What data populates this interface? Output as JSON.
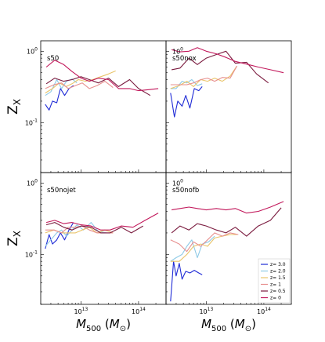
{
  "chart_data": {
    "type": "line",
    "xscale": "log",
    "yscale": "log",
    "xlim": [
      2000000000000.0,
      300000000000000.0
    ],
    "ylim": [
      0.02,
      1.4
    ],
    "xticks": [
      {
        "value": 10000000000000.0,
        "label": "10^13"
      },
      {
        "value": 100000000000000.0,
        "label": "10^14"
      }
    ],
    "yticks": [
      {
        "value": 1,
        "label": "10^0"
      },
      {
        "value": 0.1,
        "label": "10^-1"
      }
    ],
    "ylabel": "Z_X",
    "xlabel": "M_500 (M_⊙)",
    "series_styles": [
      {
        "name": "z= 3.0",
        "color": "#1f2bd6"
      },
      {
        "name": "z= 2.0",
        "color": "#8ecae6"
      },
      {
        "name": "z= 1.5",
        "color": "#e9c46a"
      },
      {
        "name": "z= 1",
        "color": "#e78f8e"
      },
      {
        "name": "z= 0.5",
        "color": "#7a1a3e"
      },
      {
        "name": "z= 0",
        "color": "#c2185b"
      }
    ],
    "panels": [
      {
        "label": "s50",
        "series": [
          {
            "name": "z= 3.0",
            "x": [
              2400000000000.0,
              2800000000000.0,
              3200000000000.0,
              3800000000000.0,
              4400000000000.0,
              5200000000000.0,
              6200000000000.0,
              7400000000000.0
            ],
            "y": [
              0.18,
              0.15,
              0.2,
              0.19,
              0.3,
              0.24,
              0.3,
              0.33
            ]
          },
          {
            "name": "z= 2.0",
            "x": [
              2400000000000.0,
              3000000000000.0,
              3800000000000.0,
              4600000000000.0,
              5600000000000.0,
              7000000000000.0,
              8500000000000.0
            ],
            "y": [
              0.24,
              0.27,
              0.4,
              0.3,
              0.38,
              0.41,
              0.36
            ]
          },
          {
            "name": "z= 1.5",
            "x": [
              2400000000000.0,
              3200000000000.0,
              4200000000000.0,
              5500000000000.0,
              7000000000000.0,
              9000000000000.0,
              12000000000000.0,
              16000000000000.0,
              22000000000000.0,
              30000000000000.0,
              40000000000000.0
            ],
            "y": [
              0.26,
              0.3,
              0.36,
              0.32,
              0.35,
              0.4,
              0.38,
              0.4,
              0.44,
              0.48,
              0.53
            ]
          },
          {
            "name": "z= 1",
            "x": [
              2400000000000.0,
              3400000000000.0,
              4600000000000.0,
              6000000000000.0,
              8000000000000.0,
              10500000000000.0,
              14000000000000.0,
              19000000000000.0,
              26000000000000.0,
              36000000000000.0
            ],
            "y": [
              0.3,
              0.34,
              0.36,
              0.3,
              0.33,
              0.36,
              0.3,
              0.33,
              0.38,
              0.31
            ]
          },
          {
            "name": "z= 0.5",
            "x": [
              2500000000000.0,
              3500000000000.0,
              5000000000000.0,
              7000000000000.0,
              10000000000000.0,
              14000000000000.0,
              20000000000000.0,
              30000000000000.0,
              45000000000000.0,
              70000000000000.0,
              100000000000000.0,
              160000000000000.0
            ],
            "y": [
              0.35,
              0.42,
              0.38,
              0.4,
              0.44,
              0.4,
              0.36,
              0.42,
              0.32,
              0.4,
              0.3,
              0.24
            ]
          },
          {
            "name": "z= 0",
            "x": [
              2500000000000.0,
              3500000000000.0,
              5000000000000.0,
              7000000000000.0,
              10000000000000.0,
              14000000000000.0,
              20000000000000.0,
              30000000000000.0,
              45000000000000.0,
              70000000000000.0,
              100000000000000.0,
              150000000000000.0,
              220000000000000.0
            ],
            "y": [
              0.6,
              0.75,
              0.65,
              0.52,
              0.42,
              0.38,
              0.42,
              0.4,
              0.3,
              0.3,
              0.28,
              0.29,
              0.3
            ]
          }
        ]
      },
      {
        "label": "s50nox",
        "series": [
          {
            "name": "z= 3.0",
            "x": [
              2400000000000.0,
              2800000000000.0,
              3200000000000.0,
              3800000000000.0,
              4400000000000.0,
              5200000000000.0,
              6200000000000.0,
              7400000000000.0,
              8500000000000.0
            ],
            "y": [
              0.26,
              0.12,
              0.2,
              0.17,
              0.24,
              0.16,
              0.3,
              0.28,
              0.32
            ]
          },
          {
            "name": "z= 2.0",
            "x": [
              2400000000000.0,
              3000000000000.0,
              3800000000000.0,
              4600000000000.0,
              5600000000000.0,
              7000000000000.0,
              8500000000000.0
            ],
            "y": [
              0.3,
              0.3,
              0.38,
              0.36,
              0.4,
              0.33,
              0.35
            ]
          },
          {
            "name": "z= 1.5",
            "x": [
              2400000000000.0,
              3400000000000.0,
              4600000000000.0,
              6000000000000.0,
              8000000000000.0,
              10500000000000.0,
              14000000000000.0,
              19000000000000.0,
              26000000000000.0,
              34000000000000.0
            ],
            "y": [
              0.3,
              0.33,
              0.38,
              0.32,
              0.4,
              0.38,
              0.42,
              0.38,
              0.45,
              0.62
            ]
          },
          {
            "name": "z= 1",
            "x": [
              2400000000000.0,
              3400000000000.0,
              4600000000000.0,
              6000000000000.0,
              8000000000000.0,
              10500000000000.0,
              14000000000000.0,
              19000000000000.0,
              26000000000000.0,
              34000000000000.0
            ],
            "y": [
              0.34,
              0.34,
              0.34,
              0.36,
              0.4,
              0.42,
              0.38,
              0.43,
              0.42,
              0.62
            ]
          },
          {
            "name": "z= 0.5",
            "x": [
              2500000000000.0,
              3500000000000.0,
              5000000000000.0,
              7000000000000.0,
              10000000000000.0,
              15000000000000.0,
              22000000000000.0,
              32000000000000.0,
              50000000000000.0,
              75000000000000.0,
              120000000000000.0
            ],
            "y": [
              0.55,
              0.58,
              0.8,
              0.65,
              0.8,
              0.9,
              1.0,
              0.68,
              0.7,
              0.48,
              0.36
            ]
          },
          {
            "name": "z= 0",
            "x": [
              2500000000000.0,
              3500000000000.0,
              5000000000000.0,
              7000000000000.0,
              10000000000000.0,
              15000000000000.0,
              22000000000000.0,
              32000000000000.0,
              50000000000000.0,
              80000000000000.0,
              130000000000000.0,
              220000000000000.0
            ],
            "y": [
              1.05,
              0.98,
              1.0,
              1.12,
              1.0,
              0.92,
              0.82,
              0.72,
              0.66,
              0.6,
              0.55,
              0.5
            ]
          }
        ]
      },
      {
        "label": "s50nojet",
        "series": [
          {
            "name": "z= 3.0",
            "x": [
              2400000000000.0,
              2800000000000.0,
              3200000000000.0,
              3800000000000.0,
              4400000000000.0,
              5200000000000.0,
              6200000000000.0,
              7400000000000.0
            ],
            "y": [
              0.12,
              0.19,
              0.14,
              0.16,
              0.2,
              0.16,
              0.22,
              0.28
            ]
          },
          {
            "name": "z= 2.0",
            "x": [
              2400000000000.0,
              3000000000000.0,
              3800000000000.0,
              4600000000000.0,
              5600000000000.0,
              7000000000000.0,
              8500000000000.0,
              11000000000000.0,
              15000000000000.0,
              20000000000000.0,
              28000000000000.0
            ],
            "y": [
              0.13,
              0.16,
              0.2,
              0.22,
              0.18,
              0.22,
              0.26,
              0.22,
              0.28,
              0.21,
              0.2
            ]
          },
          {
            "name": "z= 1.5",
            "x": [
              2400000000000.0,
              3400000000000.0,
              4600000000000.0,
              6000000000000.0,
              8000000000000.0,
              10500000000000.0,
              14000000000000.0,
              19000000000000.0,
              26000000000000.0,
              36000000000000.0
            ],
            "y": [
              0.2,
              0.22,
              0.2,
              0.2,
              0.2,
              0.22,
              0.24,
              0.2,
              0.22,
              0.2
            ]
          },
          {
            "name": "z= 1",
            "x": [
              2400000000000.0,
              3400000000000.0,
              4600000000000.0,
              6000000000000.0,
              8000000000000.0,
              10500000000000.0,
              14000000000000.0,
              19000000000000.0,
              26000000000000.0,
              36000000000000.0
            ],
            "y": [
              0.22,
              0.22,
              0.2,
              0.24,
              0.24,
              0.25,
              0.22,
              0.2,
              0.2,
              0.2
            ]
          },
          {
            "name": "z= 0.5",
            "x": [
              2500000000000.0,
              3500000000000.0,
              5000000000000.0,
              7000000000000.0,
              10000000000000.0,
              15000000000000.0,
              22000000000000.0,
              32000000000000.0,
              50000000000000.0,
              75000000000000.0,
              120000000000000.0
            ],
            "y": [
              0.26,
              0.28,
              0.24,
              0.22,
              0.25,
              0.24,
              0.2,
              0.2,
              0.24,
              0.2,
              0.25
            ]
          },
          {
            "name": "z= 0",
            "x": [
              2500000000000.0,
              3500000000000.0,
              5000000000000.0,
              7000000000000.0,
              10000000000000.0,
              15000000000000.0,
              22000000000000.0,
              32000000000000.0,
              50000000000000.0,
              80000000000000.0,
              130000000000000.0,
              220000000000000.0
            ],
            "y": [
              0.28,
              0.3,
              0.27,
              0.28,
              0.26,
              0.25,
              0.22,
              0.22,
              0.25,
              0.24,
              0.3,
              0.38
            ]
          }
        ]
      },
      {
        "label": "s50nofb",
        "series": [
          {
            "name": "z= 3.0",
            "x": [
              2400000000000.0,
              2700000000000.0,
              3000000000000.0,
              3400000000000.0,
              3800000000000.0,
              4400000000000.0,
              5200000000000.0,
              6200000000000.0,
              7400000000000.0,
              8500000000000.0
            ],
            "y": [
              0.022,
              0.08,
              0.05,
              0.075,
              0.045,
              0.058,
              0.055,
              0.06,
              0.055,
              0.052
            ]
          },
          {
            "name": "z= 2.0",
            "x": [
              2400000000000.0,
              3000000000000.0,
              3800000000000.0,
              4600000000000.0,
              5600000000000.0,
              7000000000000.0,
              8500000000000.0,
              11000000000000.0,
              14000000000000.0
            ],
            "y": [
              0.08,
              0.09,
              0.1,
              0.13,
              0.16,
              0.09,
              0.14,
              0.15,
              0.18
            ]
          },
          {
            "name": "z= 1.5",
            "x": [
              2400000000000.0,
              3400000000000.0,
              4600000000000.0,
              6000000000000.0,
              8000000000000.0,
              10500000000000.0,
              14000000000000.0,
              19000000000000.0,
              26000000000000.0,
              34000000000000.0
            ],
            "y": [
              0.08,
              0.08,
              0.1,
              0.13,
              0.14,
              0.13,
              0.17,
              0.18,
              0.19,
              0.19
            ]
          },
          {
            "name": "z= 1",
            "x": [
              2400000000000.0,
              3400000000000.0,
              4600000000000.0,
              6000000000000.0,
              8000000000000.0,
              10500000000000.0,
              14000000000000.0,
              19000000000000.0,
              26000000000000.0,
              36000000000000.0
            ],
            "y": [
              0.16,
              0.14,
              0.11,
              0.15,
              0.13,
              0.16,
              0.2,
              0.18,
              0.2,
              0.19
            ]
          },
          {
            "name": "z= 0.5",
            "x": [
              2500000000000.0,
              3500000000000.0,
              5000000000000.0,
              7000000000000.0,
              10000000000000.0,
              15000000000000.0,
              22000000000000.0,
              32000000000000.0,
              50000000000000.0,
              80000000000000.0,
              130000000000000.0,
              200000000000000.0
            ],
            "y": [
              0.2,
              0.25,
              0.22,
              0.27,
              0.25,
              0.22,
              0.2,
              0.24,
              0.18,
              0.25,
              0.3,
              0.45
            ]
          },
          {
            "name": "z= 0",
            "x": [
              2500000000000.0,
              3500000000000.0,
              5000000000000.0,
              7000000000000.0,
              10000000000000.0,
              15000000000000.0,
              22000000000000.0,
              32000000000000.0,
              50000000000000.0,
              80000000000000.0,
              130000000000000.0,
              220000000000000.0
            ],
            "y": [
              0.42,
              0.44,
              0.46,
              0.44,
              0.42,
              0.44,
              0.42,
              0.44,
              0.38,
              0.4,
              0.46,
              0.55
            ]
          }
        ]
      }
    ]
  }
}
